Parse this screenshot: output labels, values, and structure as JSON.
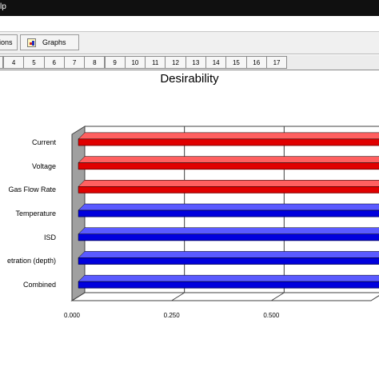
{
  "window": {
    "title_fragment": "lp"
  },
  "toolbar": {
    "options_label": "ions",
    "graphs_label": "Graphs"
  },
  "tabs": [
    "4",
    "5",
    "6",
    "7",
    "8",
    "9",
    "10",
    "11",
    "12",
    "13",
    "14",
    "15",
    "16",
    "17"
  ],
  "colors": {
    "red_bar": "#e00000",
    "blue_bar": "#0000dd",
    "wall": "#a0a0a0"
  },
  "chart_data": {
    "type": "bar",
    "orientation": "horizontal",
    "title": "Desirability",
    "categories": [
      "Current",
      "Voltage",
      "Gas Flow Rate",
      "Temperature",
      "ISD",
      "etration (depth)",
      "Combined"
    ],
    "series": [
      {
        "values": [
          1.0,
          1.0,
          1.0,
          1.0,
          1.0,
          1.0,
          1.0
        ]
      }
    ],
    "bar_colors": [
      "red",
      "red",
      "red",
      "blue",
      "blue",
      "blue",
      "blue"
    ],
    "xticks": [
      "0.000",
      "0.250",
      "0.500"
    ],
    "xlim": [
      0,
      0.75
    ],
    "xlabel": "",
    "ylabel": "",
    "grid": true
  }
}
